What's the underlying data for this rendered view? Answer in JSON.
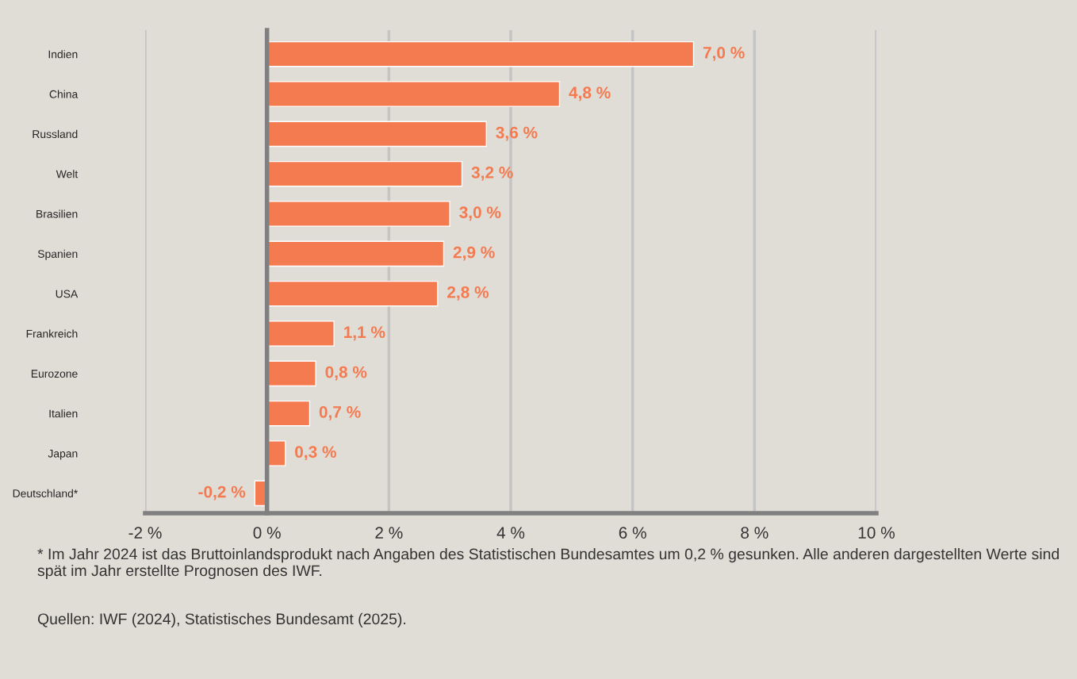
{
  "chart_data": {
    "type": "bar",
    "orientation": "horizontal",
    "categories": [
      "Indien",
      "China",
      "Russland",
      "Welt",
      "Brasilien",
      "Spanien",
      "USA",
      "Frankreich",
      "Eurozone",
      "Italien",
      "Japan",
      "Deutschland*"
    ],
    "values": [
      7.0,
      4.8,
      3.6,
      3.2,
      3.0,
      2.9,
      2.8,
      1.1,
      0.8,
      0.7,
      0.3,
      -0.2
    ],
    "value_labels": [
      "7,0 %",
      "4,8 %",
      "3,6 %",
      "3,2 %",
      "3,0 %",
      "2,9 %",
      "2,8 %",
      "1,1 %",
      "0,8 %",
      "0,7 %",
      "0,3 %",
      "-0,2 %"
    ],
    "color": "#f47a50",
    "xlim": [
      -2,
      10
    ],
    "xticks": [
      {
        "value": -2,
        "label": "-2 %"
      },
      {
        "value": 0,
        "label": "0 %"
      },
      {
        "value": 2,
        "label": "2 %"
      },
      {
        "value": 4,
        "label": "4 %"
      },
      {
        "value": 6,
        "label": "6 %"
      },
      {
        "value": 8,
        "label": "8 %"
      },
      {
        "value": 10,
        "label": "10 %"
      }
    ],
    "grid": "x",
    "legend": false,
    "annotations": [
      "* Im Jahr 2024 ist das Bruttoinlandsprodukt nach Angaben des Statistischen Bundesamtes um 0,2 % gesunken. Alle anderen dargestellten Werte sind spät im Jahr erstellte Prognosen des IWF.",
      "Quellen: IWF (2024), Statistisches Bundesamt (2025)."
    ]
  }
}
